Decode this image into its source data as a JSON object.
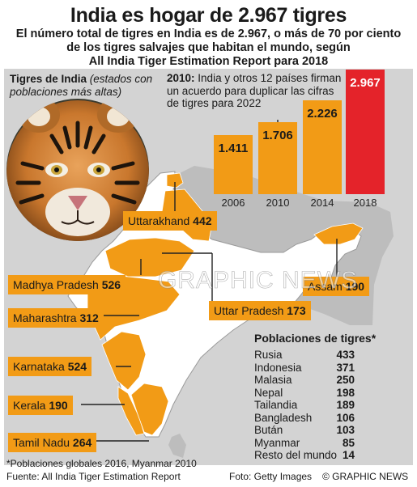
{
  "header": {
    "title": "India es hogar de 2.967 tigres",
    "subtitle_lines": [
      "El número total de tigres en India es de 2.967, o más de 70 por ciento",
      "de los tigres salvajes que habitan el mundo, según",
      "All India Tiger Estimation Report para 2018"
    ]
  },
  "map_section": {
    "heading_bold": "Tigres de India",
    "heading_italic": "(estados con poblaciones más altas)"
  },
  "note_2010": {
    "year": "2010:",
    "text": "India y otros 12 países firman un acuerdo para duplicar las cifras de tigres para 2022"
  },
  "chart_data": {
    "type": "bar",
    "categories": [
      "2006",
      "2010",
      "2014",
      "2018"
    ],
    "values": [
      1411,
      1706,
      2226,
      2967
    ],
    "value_labels": [
      "1.411",
      "1.706",
      "2.226",
      "2.967"
    ],
    "highlight": "2018",
    "colors": {
      "bar": "#f29b16",
      "highlight": "#e4232a"
    }
  },
  "states": [
    {
      "name": "Uttarakhand",
      "value": "442"
    },
    {
      "name": "Madhya Pradesh",
      "value": "526"
    },
    {
      "name": "Maharashtra",
      "value": "312"
    },
    {
      "name": "Karnataka",
      "value": "524"
    },
    {
      "name": "Kerala",
      "value": "190"
    },
    {
      "name": "Tamil Nadu",
      "value": "264"
    },
    {
      "name": "Uttar Pradesh",
      "value": "173"
    },
    {
      "name": "Assam",
      "value": "190"
    }
  ],
  "populations": {
    "title": "Poblaciones de tigres*",
    "rows": [
      {
        "country": "Rusia",
        "value": "433"
      },
      {
        "country": "Indonesia",
        "value": "371"
      },
      {
        "country": "Malasia",
        "value": "250"
      },
      {
        "country": "Nepal",
        "value": "198"
      },
      {
        "country": "Tailandia",
        "value": "189"
      },
      {
        "country": "Bangladesh",
        "value": "106"
      },
      {
        "country": "Bután",
        "value": "103"
      },
      {
        "country": "Myanmar",
        "value": "85"
      },
      {
        "country": "Resto del mundo",
        "value": "14"
      }
    ]
  },
  "footer": {
    "footnote": "*Poblaciones globales 2016, Myanmar 2010",
    "source": "Fuente: All India Tiger Estimation Report",
    "photo": "Foto: Getty Images",
    "credit": "© GRAPHIC NEWS"
  },
  "watermark": "GRAPHIC NEWS"
}
